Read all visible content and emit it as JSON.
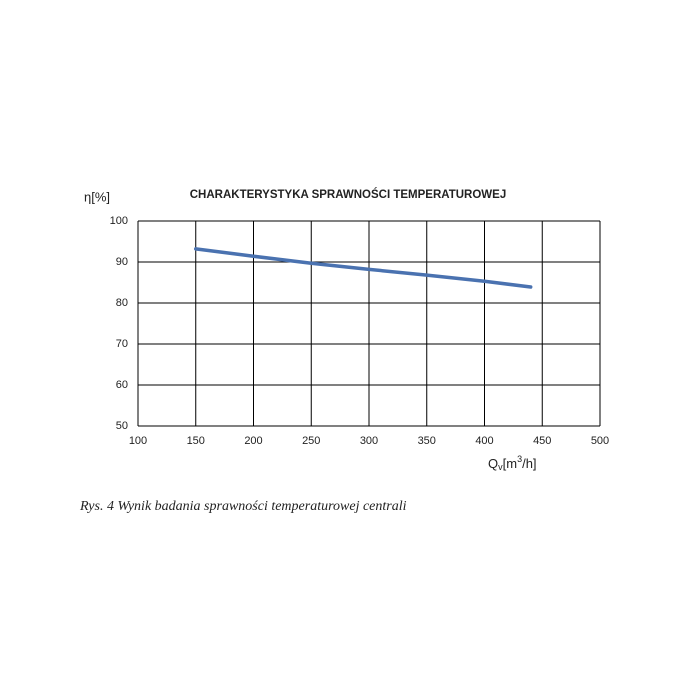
{
  "chart_data": {
    "type": "line",
    "title": "CHARAKTERYSTYKA SPRAWNOŚCI TEMPERATUROWEJ",
    "y_label": "η[%]",
    "x_label": [
      "Q",
      "v",
      "[m",
      "3",
      "/h]"
    ],
    "x": [
      150,
      200,
      250,
      300,
      350,
      400,
      440
    ],
    "series": [
      {
        "color": "#4a72b0",
        "values": [
          93.2,
          91.4,
          89.7,
          88.2,
          86.8,
          85.3,
          83.9
        ]
      }
    ],
    "xlim": [
      100,
      500
    ],
    "xticks": [
      100,
      150,
      200,
      250,
      300,
      350,
      400,
      450,
      500
    ],
    "ylim": [
      50,
      100
    ],
    "yticks": [
      50,
      60,
      70,
      80,
      90,
      100
    ],
    "grid": true,
    "caption": "Rys. 4 Wynik badania sprawności temperaturowej centrali"
  }
}
